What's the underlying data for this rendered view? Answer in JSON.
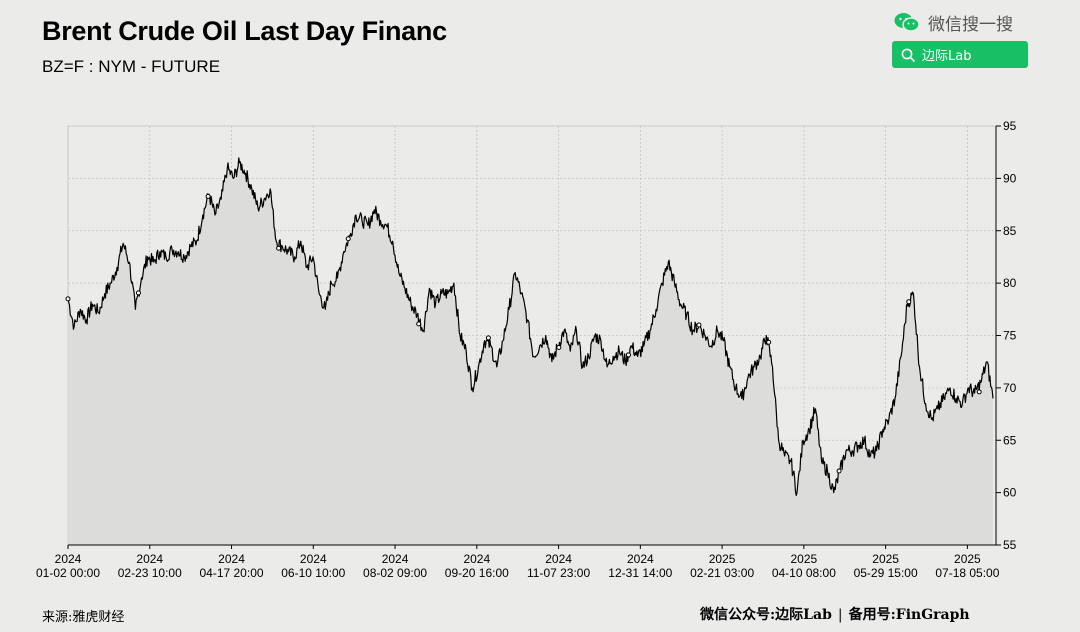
{
  "header": {
    "title": "Brent Crude Oil Last Day Financ",
    "subtitle": "BZ=F : NYM - FUTURE"
  },
  "wechat": {
    "brand_label": "微信搜一搜",
    "search_value": "边际Lab",
    "accent_color": "#17c064",
    "brand_icon": "wechat-icon",
    "search_icon": "search-icon"
  },
  "footer": {
    "source": "来源:雅虎财经",
    "account_label": "微信公众号:边际Lab",
    "separator": "|",
    "backup_label": "备用号:FinGraph"
  },
  "chart_data": {
    "type": "area",
    "title": "Brent Crude Oil Last Day Financ",
    "subtitle": "BZ=F : NYM - FUTURE",
    "xlabel": "",
    "ylabel": "",
    "ylim": [
      55,
      95
    ],
    "y_ticks": [
      55,
      60,
      65,
      70,
      75,
      80,
      85,
      90,
      95
    ],
    "y_axis_side": "right",
    "grid": true,
    "x_ticks": [
      {
        "year": "2024",
        "date": "01-02 00:00"
      },
      {
        "year": "2024",
        "date": "02-23 10:00"
      },
      {
        "year": "2024",
        "date": "04-17 20:00"
      },
      {
        "year": "2024",
        "date": "06-10 10:00"
      },
      {
        "year": "2024",
        "date": "08-02 09:00"
      },
      {
        "year": "2024",
        "date": "09-20 16:00"
      },
      {
        "year": "2024",
        "date": "11-07 23:00"
      },
      {
        "year": "2024",
        "date": "12-31 14:00"
      },
      {
        "year": "2025",
        "date": "02-21 03:00"
      },
      {
        "year": "2025",
        "date": "04-10 08:00"
      },
      {
        "year": "2025",
        "date": "05-29 15:00"
      },
      {
        "year": "2025",
        "date": "07-18 05:00"
      }
    ],
    "series": [
      {
        "line_color": "#000000",
        "fill_color": "#dcdcdb",
        "values": [
          78.5,
          75.8,
          77.5,
          76.5,
          78,
          77.2,
          79,
          80,
          81.5,
          83.8,
          82,
          77.5,
          80.5,
          82.5,
          82,
          83,
          82.5,
          83.2,
          83,
          82.5,
          83.5,
          84,
          86.5,
          88.5,
          86.5,
          88,
          91,
          90,
          91.5,
          90.5,
          89,
          87.2,
          88,
          89,
          84,
          83.5,
          83,
          82.5,
          84,
          81.5,
          82.5,
          79,
          77.5,
          80,
          80.5,
          83,
          84.5,
          86.5,
          86,
          85.5,
          87,
          86,
          85.5,
          84,
          81,
          79.5,
          78,
          77,
          75.5,
          79.5,
          78,
          79,
          79,
          80,
          75,
          73.5,
          70,
          72,
          74.5,
          74,
          72,
          74.5,
          77.5,
          81,
          79,
          76.5,
          73,
          74,
          75,
          72.5,
          74,
          75.5,
          73.5,
          75.5,
          72,
          73,
          75,
          74.5,
          72,
          73,
          73.5,
          72.5,
          74,
          73,
          74,
          75.5,
          77.5,
          80,
          82,
          80,
          78,
          77,
          75.5,
          76,
          75,
          74,
          75.5,
          74.5,
          72,
          70,
          69,
          71,
          72,
          73,
          75,
          72,
          65,
          63.5,
          63,
          60,
          65,
          66,
          68,
          63,
          62,
          60,
          62,
          64,
          64,
          64.5,
          65,
          63.5,
          64,
          66,
          67,
          69,
          73,
          78,
          79,
          72,
          68.5,
          67,
          68,
          69,
          70,
          69,
          68.5,
          70,
          69.5,
          70.5,
          72.5,
          69
        ]
      }
    ],
    "markers_count": 14
  }
}
